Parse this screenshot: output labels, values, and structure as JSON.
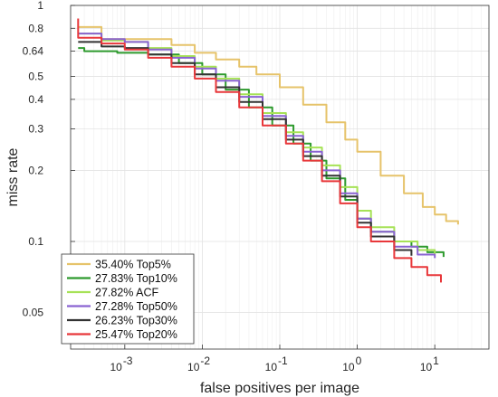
{
  "chart_data": {
    "type": "line",
    "xlabel": "false positives per image",
    "ylabel": "miss rate",
    "x_scale": "log",
    "y_scale": "log",
    "xlim": [
      0.0002,
      50
    ],
    "ylim": [
      0.035,
      1
    ],
    "x_ticks": [
      {
        "value": 0.001,
        "base": "10",
        "exp": "-3"
      },
      {
        "value": 0.01,
        "base": "10",
        "exp": "-2"
      },
      {
        "value": 0.1,
        "base": "10",
        "exp": "-1"
      },
      {
        "value": 1,
        "base": "10",
        "exp": "0"
      },
      {
        "value": 10,
        "base": "10",
        "exp": "1"
      }
    ],
    "y_ticks": [
      {
        "value": 0.05,
        "label": "0.05"
      },
      {
        "value": 0.1,
        "label": "0.1"
      },
      {
        "value": 0.2,
        "label": "0.2"
      },
      {
        "value": 0.3,
        "label": "0.3"
      },
      {
        "value": 0.4,
        "label": "0.4"
      },
      {
        "value": 0.5,
        "label": "0.5"
      },
      {
        "value": 0.64,
        "label": "0.64"
      },
      {
        "value": 0.8,
        "label": "0.8"
      },
      {
        "value": 1,
        "label": "1"
      }
    ],
    "grid": true,
    "legend_position": "bottom-left",
    "series": [
      {
        "name": "35.40% Top5%",
        "color": "#e6c36a",
        "points": [
          [
            0.00025,
            0.81
          ],
          [
            0.0005,
            0.81
          ],
          [
            0.0005,
            0.72
          ],
          [
            0.002,
            0.72
          ],
          [
            0.004,
            0.68
          ],
          [
            0.008,
            0.63
          ],
          [
            0.015,
            0.59
          ],
          [
            0.03,
            0.55
          ],
          [
            0.05,
            0.51
          ],
          [
            0.1,
            0.45
          ],
          [
            0.2,
            0.38
          ],
          [
            0.4,
            0.32
          ],
          [
            0.7,
            0.27
          ],
          [
            1.0,
            0.24
          ],
          [
            2,
            0.19
          ],
          [
            4,
            0.16
          ],
          [
            7,
            0.14
          ],
          [
            10,
            0.13
          ],
          [
            14,
            0.122
          ],
          [
            20,
            0.118
          ]
        ]
      },
      {
        "name": "27.83% Top10%",
        "color": "#2e9a2e",
        "points": [
          [
            0.00025,
            0.66
          ],
          [
            0.0003,
            0.64
          ],
          [
            0.0008,
            0.63
          ],
          [
            0.002,
            0.62
          ],
          [
            0.005,
            0.57
          ],
          [
            0.01,
            0.51
          ],
          [
            0.02,
            0.44
          ],
          [
            0.04,
            0.37
          ],
          [
            0.08,
            0.31
          ],
          [
            0.15,
            0.26
          ],
          [
            0.25,
            0.22
          ],
          [
            0.4,
            0.185
          ],
          [
            0.7,
            0.15
          ],
          [
            1,
            0.125
          ],
          [
            1.5,
            0.11
          ],
          [
            3,
            0.1
          ],
          [
            5,
            0.095
          ],
          [
            8,
            0.09
          ],
          [
            13,
            0.086
          ]
        ]
      },
      {
        "name": "27.82% ACF",
        "color": "#a6e256",
        "points": [
          [
            0.00025,
            0.76
          ],
          [
            0.0005,
            0.76
          ],
          [
            0.0005,
            0.71
          ],
          [
            0.001,
            0.7
          ],
          [
            0.002,
            0.66
          ],
          [
            0.004,
            0.61
          ],
          [
            0.008,
            0.55
          ],
          [
            0.015,
            0.49
          ],
          [
            0.03,
            0.42
          ],
          [
            0.06,
            0.35
          ],
          [
            0.12,
            0.29
          ],
          [
            0.2,
            0.25
          ],
          [
            0.35,
            0.21
          ],
          [
            0.6,
            0.17
          ],
          [
            1,
            0.135
          ],
          [
            1.5,
            0.115
          ],
          [
            3,
            0.1
          ],
          [
            6,
            0.092
          ],
          [
            10,
            0.088
          ]
        ]
      },
      {
        "name": "27.28% Top50%",
        "color": "#8a63d2",
        "points": [
          [
            0.00025,
            0.76
          ],
          [
            0.0005,
            0.72
          ],
          [
            0.001,
            0.7
          ],
          [
            0.002,
            0.65
          ],
          [
            0.004,
            0.6
          ],
          [
            0.008,
            0.54
          ],
          [
            0.015,
            0.48
          ],
          [
            0.03,
            0.41
          ],
          [
            0.06,
            0.34
          ],
          [
            0.12,
            0.28
          ],
          [
            0.2,
            0.24
          ],
          [
            0.35,
            0.2
          ],
          [
            0.6,
            0.16
          ],
          [
            1,
            0.125
          ],
          [
            1.5,
            0.11
          ],
          [
            3,
            0.095
          ],
          [
            6,
            0.088
          ],
          [
            10,
            0.085
          ]
        ]
      },
      {
        "name": "26.23% Top30%",
        "color": "#333333",
        "points": [
          [
            0.00025,
            0.7
          ],
          [
            0.0005,
            0.7
          ],
          [
            0.0005,
            0.67
          ],
          [
            0.001,
            0.66
          ],
          [
            0.002,
            0.62
          ],
          [
            0.004,
            0.57
          ],
          [
            0.008,
            0.51
          ],
          [
            0.015,
            0.45
          ],
          [
            0.03,
            0.39
          ],
          [
            0.06,
            0.33
          ],
          [
            0.12,
            0.27
          ],
          [
            0.2,
            0.23
          ],
          [
            0.35,
            0.19
          ],
          [
            0.6,
            0.155
          ],
          [
            1,
            0.12
          ],
          [
            1.5,
            0.105
          ],
          [
            3,
            0.092
          ],
          [
            5,
            0.087
          ]
        ]
      },
      {
        "name": "25.47% Top20%",
        "color": "#e8373a",
        "points": [
          [
            0.00025,
            0.88
          ],
          [
            0.00025,
            0.73
          ],
          [
            0.0005,
            0.69
          ],
          [
            0.001,
            0.65
          ],
          [
            0.002,
            0.6
          ],
          [
            0.004,
            0.55
          ],
          [
            0.008,
            0.49
          ],
          [
            0.015,
            0.43
          ],
          [
            0.03,
            0.37
          ],
          [
            0.06,
            0.31
          ],
          [
            0.12,
            0.26
          ],
          [
            0.2,
            0.22
          ],
          [
            0.35,
            0.18
          ],
          [
            0.6,
            0.145
          ],
          [
            1,
            0.115
          ],
          [
            1.5,
            0.1
          ],
          [
            3,
            0.085
          ],
          [
            5,
            0.078
          ],
          [
            8,
            0.072
          ],
          [
            12,
            0.067
          ]
        ]
      }
    ]
  }
}
